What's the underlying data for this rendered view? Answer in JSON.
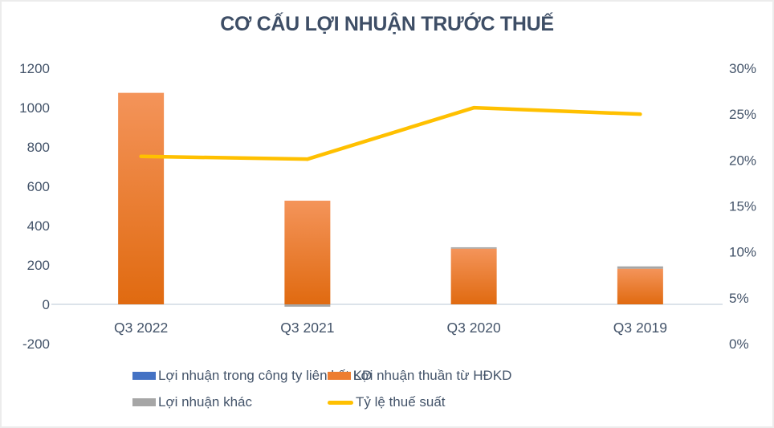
{
  "title": "CƠ CẤU LỢI NHUẬN TRƯỚC THUẾ",
  "colors": {
    "title_text": "#3e4e66",
    "axis_text": "#44546A",
    "axis_line": "#dce3ea",
    "series_blue": "#4472C4",
    "series_orange": "#ED7D31",
    "series_orange_gradient_top": "#F4945A",
    "series_orange_gradient_bottom": "#E06A10",
    "series_gray": "#A6A6A6",
    "series_yellow": "#FFC000",
    "background": "#ffffff"
  },
  "chart_data": {
    "type": "combo (stacked bar + line, dual axis)",
    "title": "CƠ CẤU LỢI NHUẬN TRƯỚC THUẾ",
    "categories": [
      "Q3 2022",
      "Q3 2021",
      "Q3 2020",
      "Q3 2019"
    ],
    "series": [
      {
        "name": "Lợi nhuận trong công ty liên kết KD",
        "type": "bar",
        "axis": "left",
        "color": "#4472C4",
        "values": [
          0,
          0,
          0,
          0
        ]
      },
      {
        "name": "Lợi nhuận thuần từ HĐKD",
        "type": "bar",
        "axis": "left",
        "color": "#ED7D31",
        "values": [
          1075,
          527,
          283,
          181
        ]
      },
      {
        "name": "Lợi nhuận khác",
        "type": "bar",
        "axis": "left",
        "color": "#A6A6A6",
        "values": [
          0,
          -12,
          7,
          12
        ]
      },
      {
        "name": "Tỷ lệ thuế suất",
        "type": "line",
        "axis": "right",
        "color": "#FFC000",
        "values": [
          20.4,
          20.1,
          25.7,
          25.0
        ]
      }
    ],
    "left_axis": {
      "min": -200,
      "max": 1200,
      "step": 200,
      "tick_labels": [
        "-200",
        "0",
        "200",
        "400",
        "600",
        "800",
        "1000",
        "1200"
      ]
    },
    "right_axis": {
      "min": 0,
      "max": 30,
      "step": 5,
      "tick_labels": [
        "0%",
        "5%",
        "10%",
        "15%",
        "20%",
        "25%",
        "30%"
      ]
    },
    "stacked": true,
    "gridlines": false,
    "legend_position": "bottom",
    "xlabel": "",
    "ylabel": ""
  }
}
